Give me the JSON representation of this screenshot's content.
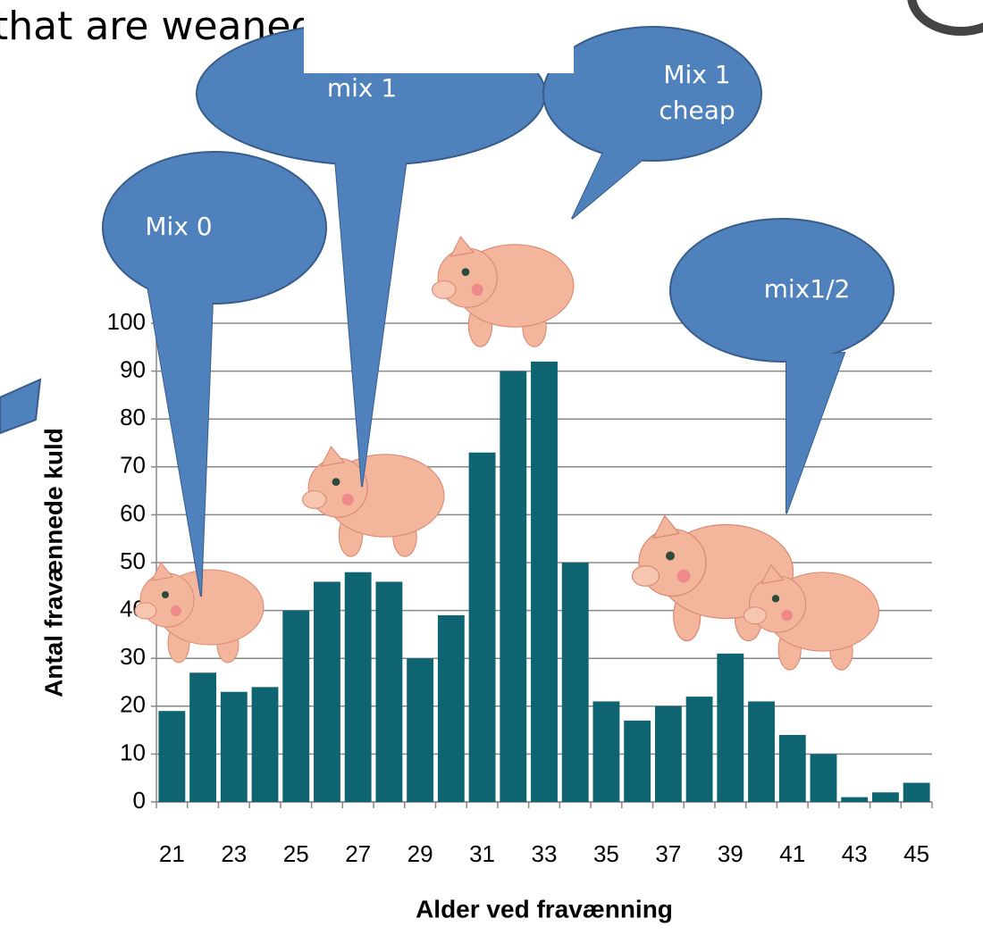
{
  "chart_data": {
    "type": "bar",
    "title": "that are weaned",
    "x_label": "Alder ved fravænning",
    "y_label": "Antal fravænnede kuld",
    "categories": [
      "21",
      null,
      "23",
      null,
      "25",
      null,
      "27",
      null,
      "29",
      null,
      "31",
      null,
      "33",
      null,
      "35",
      null,
      "37",
      null,
      "39",
      null,
      "41",
      null,
      "43",
      null,
      "45"
    ],
    "values": [
      19,
      27,
      23,
      24,
      40,
      46,
      48,
      46,
      30,
      39,
      73,
      90,
      92,
      50,
      21,
      17,
      20,
      22,
      31,
      21,
      14,
      10,
      1,
      2,
      4
    ],
    "color": "#0e6470",
    "ylim": [
      0,
      100
    ],
    "yticks": [
      0,
      10,
      20,
      30,
      40,
      50,
      60,
      70,
      80,
      90,
      100
    ],
    "grid": true,
    "annotations": [
      "Mix 0",
      "mix 1",
      "Mix 1 cheap",
      "mix1/2"
    ]
  }
}
